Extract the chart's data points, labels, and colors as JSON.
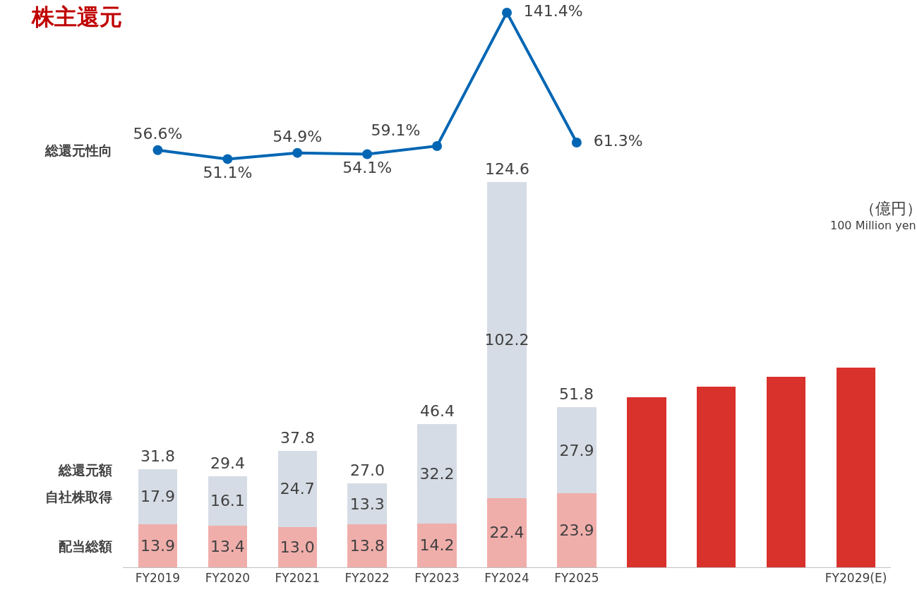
{
  "chart_data": [
    {
      "type": "line",
      "title": "株主還元",
      "categories": [
        null,
        null,
        null,
        null,
        null,
        null,
        null,
        null,
        null,
        null,
        null
      ],
      "series": [
        {
          "name": "総還元性向",
          "color": "#0066b3",
          "marker": "circle",
          "line_style": "solid",
          "values": [
            56.6,
            51.1,
            54.9,
            54.1,
            59.1,
            141.4,
            61.3,
            null,
            null,
            null,
            null
          ],
          "value_labels": [
            "56.6%",
            "51.1%",
            "54.9%",
            "54.1%",
            "59.1%",
            "141.4%",
            "61.3%",
            null,
            null,
            null,
            null
          ]
        }
      ]
    },
    {
      "type": "bar",
      "stacked": true,
      "categories": [
        "FY2019",
        "FY2020",
        "FY2021",
        "FY2022",
        "FY2023",
        "FY2024",
        "FY2025",
        null,
        null,
        null,
        "FY2029(E)"
      ],
      "series": [
        {
          "name": "配当総額",
          "color": "#f0aeab",
          "values": [
            13.9,
            13.4,
            13.0,
            13.8,
            14.2,
            22.4,
            23.9,
            null,
            null,
            null,
            null
          ],
          "value_labels": [
            "13.9",
            "13.4",
            "13.0",
            "13.8",
            "14.2",
            "22.4",
            "23.9",
            null,
            null,
            null,
            null
          ]
        },
        {
          "name": "自社株取得",
          "color": "#d6dce5",
          "values": [
            17.9,
            16.1,
            24.7,
            13.3,
            32.2,
            102.2,
            27.9,
            null,
            null,
            null,
            null
          ],
          "value_labels": [
            "17.9",
            "16.1",
            "24.7",
            "13.3",
            "32.2",
            "102.2",
            "27.9",
            null,
            null,
            null,
            null
          ]
        },
        {
          "color": "#d9312b",
          "values": [
            null,
            null,
            null,
            null,
            null,
            null,
            null,
            55,
            58.5,
            61.5,
            64.5
          ]
        }
      ],
      "totals": [
        "31.8",
        "29.4",
        "37.8",
        "27.0",
        "46.4",
        "124.6",
        "51.8",
        null,
        null,
        null,
        null
      ],
      "annotations": [
        "総還元額",
        "（億円）",
        "100 Million yen"
      ]
    }
  ]
}
